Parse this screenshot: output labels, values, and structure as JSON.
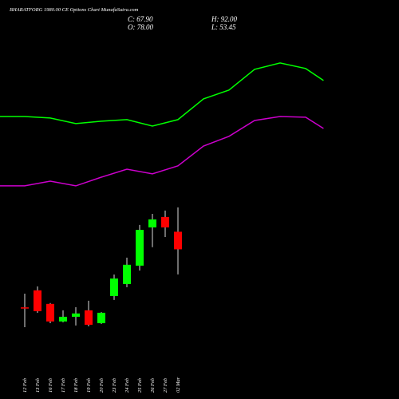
{
  "chart_data": {
    "type": "candlestick",
    "title": "BHARATFORG 1980.00 CE Options Chart MunafaSutra.com",
    "info": [
      "C: 67.90",
      "O: 78.00",
      "H: 92.00",
      "L: 53.45"
    ],
    "categories": [
      "12 Feb",
      "13 Feb",
      "16 Feb",
      "17 Feb",
      "18 Feb",
      "19 Feb",
      "20 Feb",
      "23 Feb",
      "24 Feb",
      "25 Feb",
      "26 Feb",
      "27 Feb",
      "02 Mar"
    ],
    "open": [
      34.5,
      44.3,
      36.5,
      26.4,
      29.1,
      32.8,
      25.4,
      41.0,
      47.9,
      58.5,
      80.5,
      86.5,
      78.0
    ],
    "high": [
      42.4,
      46.6,
      37.0,
      32.8,
      34.6,
      38.3,
      31.8,
      53.4,
      63.1,
      81.9,
      88.3,
      90.2,
      92.0
    ],
    "low": [
      23.1,
      31.4,
      25.4,
      25.9,
      24.1,
      23.6,
      25.0,
      38.8,
      46.1,
      55.7,
      69.1,
      75.0,
      53.45
    ],
    "close": [
      34.0,
      32.3,
      26.4,
      29.1,
      31.0,
      24.5,
      31.4,
      51.1,
      59.0,
      79.1,
      85.1,
      80.5,
      67.9
    ],
    "up_color": "#00ff00",
    "down_color": "#ff0000",
    "lines": [
      {
        "color": "#00ff00",
        "x": [
          -2,
          0,
          2,
          4,
          6,
          8,
          10,
          12,
          14,
          16,
          18,
          20,
          22,
          23.4
        ],
        "values": [
          144.3,
          144.3,
          143.4,
          140.2,
          141.6,
          142.5,
          138.8,
          142.5,
          154.4,
          159.5,
          171.4,
          175.1,
          171.9,
          165.0
        ]
      },
      {
        "color": "#cc00cc",
        "x": [
          -2,
          0,
          2,
          4,
          6,
          8,
          10,
          12,
          14,
          16,
          18,
          20,
          22,
          23.4
        ],
        "values": [
          104.4,
          104.4,
          107.1,
          104.4,
          109.4,
          114.0,
          111.3,
          115.9,
          127.3,
          132.9,
          142.0,
          144.3,
          143.9,
          137.4
        ]
      }
    ],
    "ylim": [
      -18.2,
      211.3
    ]
  }
}
